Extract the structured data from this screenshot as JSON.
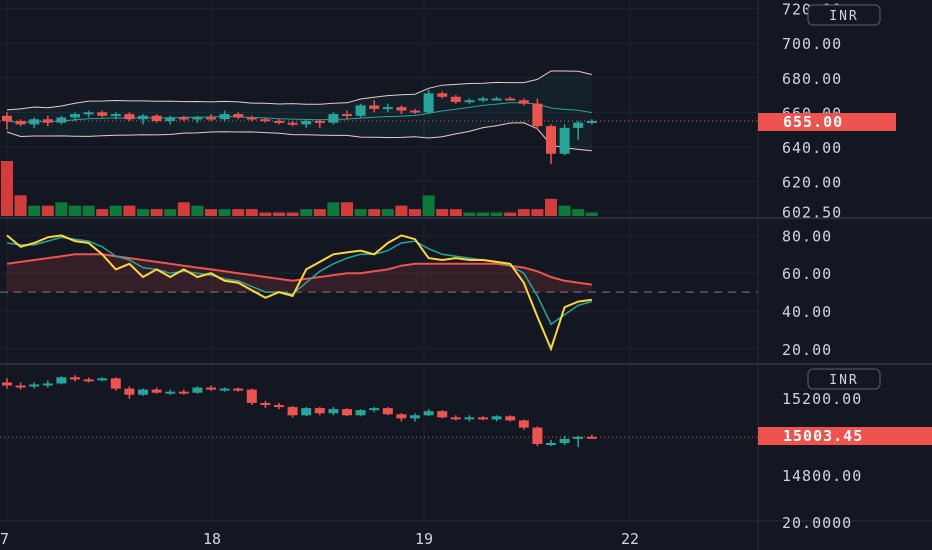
{
  "colors": {
    "background": "#131722",
    "grid": "#1f2330",
    "up": "#26a69a",
    "down": "#ef5350",
    "volume_up": "#0b7a3a",
    "volume_down": "#d43c3c",
    "bb_band": "#f0c8c8",
    "bb_basis": "#26a69a",
    "rsi_fast": "#fdd835",
    "rsi_slow": "#26a69a",
    "rsi_signal": "#ef5350",
    "badge": "#ef5350",
    "text": "#d1d4dc"
  },
  "time_axis": {
    "labels": [
      "7",
      "18",
      "19",
      "22"
    ]
  },
  "chart_data": [
    {
      "type": "candlestick",
      "panel": "price",
      "currency": "INR",
      "y_ticks": [
        "720.00",
        "700.00",
        "680.00",
        "660.00",
        "640.00",
        "620.00",
        "602.50"
      ],
      "ylim": [
        600,
        725
      ],
      "last_price": "655.00",
      "candles": [
        [
          658,
          660,
          650,
          655
        ],
        [
          655,
          656,
          652,
          653
        ],
        [
          653,
          657,
          651,
          656
        ],
        [
          656,
          658,
          652,
          654
        ],
        [
          654,
          658,
          653,
          657
        ],
        [
          657,
          660,
          655,
          659
        ],
        [
          659,
          661,
          657,
          660
        ],
        [
          660,
          661,
          657,
          658
        ],
        [
          658,
          660,
          656,
          659
        ],
        [
          659,
          660,
          655,
          656
        ],
        [
          656,
          659,
          653,
          658
        ],
        [
          658,
          659,
          654,
          655
        ],
        [
          655,
          658,
          653,
          657
        ],
        [
          657,
          658,
          655,
          656
        ],
        [
          656,
          658,
          654,
          657
        ],
        [
          657,
          659,
          655,
          656
        ],
        [
          656,
          661,
          655,
          659
        ],
        [
          659,
          660,
          656,
          657
        ],
        [
          657,
          658,
          655,
          656
        ],
        [
          656,
          657,
          654,
          655
        ],
        [
          655,
          656,
          653,
          654
        ],
        [
          654,
          655,
          652,
          653
        ],
        [
          653,
          656,
          651,
          655
        ],
        [
          655,
          656,
          651,
          654
        ],
        [
          654,
          660,
          653,
          659
        ],
        [
          659,
          661,
          656,
          658
        ],
        [
          658,
          665,
          657,
          664
        ],
        [
          664,
          667,
          660,
          662
        ],
        [
          662,
          665,
          660,
          663
        ],
        [
          663,
          664,
          659,
          661
        ],
        [
          661,
          662,
          659,
          660
        ],
        [
          660,
          673,
          659,
          671
        ],
        [
          671,
          672,
          668,
          669
        ],
        [
          669,
          670,
          665,
          666
        ],
        [
          666,
          668,
          665,
          667
        ],
        [
          667,
          669,
          666,
          668
        ],
        [
          668,
          669,
          667,
          668
        ],
        [
          668,
          669,
          667,
          667
        ],
        [
          667,
          668,
          664,
          665
        ],
        [
          665,
          668,
          650,
          652
        ],
        [
          652,
          653,
          630,
          636
        ],
        [
          636,
          653,
          635,
          651
        ],
        [
          651,
          655,
          644,
          654
        ],
        [
          654,
          656,
          653,
          655
        ]
      ],
      "volume": [
        16,
        6,
        3,
        3,
        4,
        3,
        3,
        2,
        3,
        3,
        2,
        2,
        2,
        4,
        3,
        2,
        2,
        2,
        2,
        1,
        1,
        1,
        2,
        2,
        4,
        4,
        2,
        2,
        2,
        3,
        2,
        6,
        2,
        2,
        1,
        1,
        1,
        1,
        2,
        2,
        5,
        3,
        2,
        1
      ]
    },
    {
      "type": "line",
      "panel": "oscillator",
      "y_ticks": [
        "80.00",
        "60.00",
        "40.00",
        "20.00"
      ],
      "ylim": [
        13,
        85
      ],
      "reference_level": 50,
      "series": [
        {
          "values": [
            80,
            74,
            76,
            79,
            80,
            77,
            76,
            70,
            62,
            65,
            58,
            62,
            58,
            62,
            58,
            60,
            56,
            55,
            51,
            47,
            50,
            48,
            62,
            66,
            70,
            71,
            72,
            70,
            76,
            80,
            78,
            68,
            67,
            68,
            67,
            67,
            66,
            65,
            55,
            37,
            20,
            42,
            45,
            46
          ]
        },
        {
          "values": [
            76,
            75,
            75,
            77,
            79,
            78,
            77,
            74,
            69,
            67,
            63,
            62,
            60,
            61,
            60,
            59,
            57,
            56,
            53,
            50,
            50,
            49,
            55,
            61,
            65,
            68,
            70,
            70,
            72,
            76,
            77,
            73,
            70,
            69,
            68,
            67,
            66,
            64,
            60,
            48,
            33,
            38,
            43,
            45
          ]
        },
        {
          "values": [
            65,
            66,
            67,
            68,
            69,
            70,
            70,
            70,
            69,
            68,
            67,
            66,
            65,
            64,
            63,
            62,
            61,
            60,
            59,
            58,
            57,
            56,
            57,
            58,
            59,
            60,
            60,
            61,
            62,
            64,
            65,
            65,
            65,
            65,
            65,
            65,
            65,
            64,
            63,
            61,
            58,
            56,
            55,
            54
          ]
        }
      ]
    },
    {
      "type": "candlestick",
      "panel": "index",
      "currency": "INR",
      "y_ticks": [
        "15200.00",
        "14800.00",
        "20.0000"
      ],
      "ylim": [
        14600,
        15350
      ],
      "last_price": "15003.45",
      "candles": [
        [
          15270,
          15290,
          15240,
          15255
        ],
        [
          15255,
          15270,
          15235,
          15250
        ],
        [
          15250,
          15270,
          15240,
          15260
        ],
        [
          15260,
          15280,
          15245,
          15265
        ],
        [
          15265,
          15300,
          15260,
          15295
        ],
        [
          15295,
          15305,
          15275,
          15285
        ],
        [
          15285,
          15295,
          15270,
          15280
        ],
        [
          15280,
          15295,
          15275,
          15290
        ],
        [
          15290,
          15295,
          15230,
          15240
        ],
        [
          15240,
          15250,
          15190,
          15210
        ],
        [
          15210,
          15240,
          15205,
          15235
        ],
        [
          15235,
          15245,
          15215,
          15220
        ],
        [
          15220,
          15235,
          15210,
          15225
        ],
        [
          15225,
          15235,
          15210,
          15220
        ],
        [
          15220,
          15250,
          15215,
          15245
        ],
        [
          15245,
          15255,
          15230,
          15235
        ],
        [
          15235,
          15245,
          15225,
          15240
        ],
        [
          15240,
          15245,
          15225,
          15235
        ],
        [
          15235,
          15240,
          15160,
          15170
        ],
        [
          15170,
          15180,
          15145,
          15160
        ],
        [
          15160,
          15170,
          15140,
          15150
        ],
        [
          15150,
          15155,
          15100,
          15110
        ],
        [
          15110,
          15150,
          15105,
          15145
        ],
        [
          15145,
          15150,
          15110,
          15120
        ],
        [
          15120,
          15150,
          15110,
          15140
        ],
        [
          15140,
          15145,
          15105,
          15110
        ],
        [
          15110,
          15140,
          15105,
          15135
        ],
        [
          15135,
          15150,
          15125,
          15145
        ],
        [
          15145,
          15150,
          15110,
          15115
        ],
        [
          15115,
          15120,
          15080,
          15095
        ],
        [
          15095,
          15120,
          15080,
          15110
        ],
        [
          15110,
          15140,
          15105,
          15130
        ],
        [
          15130,
          15135,
          15095,
          15100
        ],
        [
          15100,
          15110,
          15085,
          15095
        ],
        [
          15095,
          15110,
          15080,
          15100
        ],
        [
          15100,
          15105,
          15085,
          15090
        ],
        [
          15090,
          15110,
          15080,
          15105
        ],
        [
          15105,
          15110,
          15080,
          15085
        ],
        [
          15085,
          15090,
          15040,
          15050
        ],
        [
          15050,
          15055,
          14960,
          14970
        ],
        [
          14970,
          14990,
          14960,
          14975
        ],
        [
          14975,
          15010,
          14965,
          14995
        ],
        [
          14995,
          15010,
          14955,
          15005
        ],
        [
          15005,
          15015,
          14995,
          15003
        ]
      ]
    }
  ]
}
